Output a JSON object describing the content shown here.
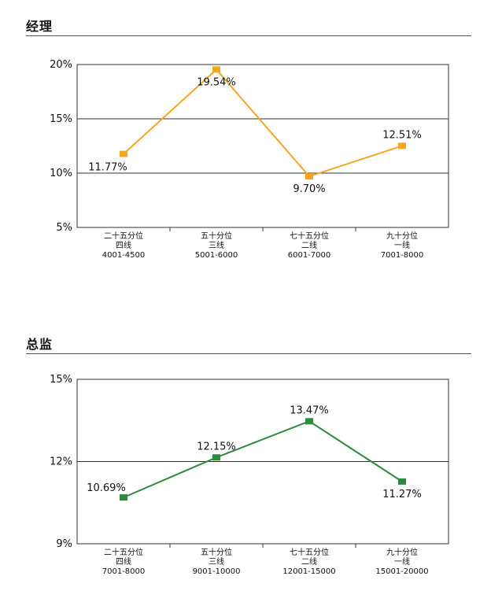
{
  "charts": [
    {
      "title": "经理",
      "chart_data": {
        "type": "line",
        "categories": [
          [
            "二十五分位",
            "四线",
            "4001-4500"
          ],
          [
            "五十分位",
            "三线",
            "5001-6000"
          ],
          [
            "七十五分位",
            "二线",
            "6001-7000"
          ],
          [
            "九十分位",
            "一线",
            "7001-8000"
          ]
        ],
        "values": [
          11.77,
          19.54,
          9.7,
          12.51
        ],
        "value_labels": [
          "11.77%",
          "19.54%",
          "9.70%",
          "12.51%"
        ],
        "yticks": [
          5,
          10,
          15,
          20
        ],
        "ytick_labels": [
          "5%",
          "10%",
          "15%",
          "20%"
        ],
        "ylim": [
          5,
          20
        ],
        "gridlines": [
          10,
          15
        ],
        "color": "#f5a623"
      }
    },
    {
      "title": "总监",
      "chart_data": {
        "type": "line",
        "categories": [
          [
            "二十五分位",
            "四线",
            "7001-8000"
          ],
          [
            "五十分位",
            "三线",
            "9001-10000"
          ],
          [
            "七十五分位",
            "二线",
            "12001-15000"
          ],
          [
            "九十分位",
            "一线",
            "15001-20000"
          ]
        ],
        "values": [
          10.69,
          12.15,
          13.47,
          11.27
        ],
        "value_labels": [
          "10.69%",
          "12.15%",
          "13.47%",
          "11.27%"
        ],
        "yticks": [
          9,
          12,
          15
        ],
        "ytick_labels": [
          "9%",
          "12%",
          "15%"
        ],
        "ylim": [
          9,
          15
        ],
        "gridlines": [
          12
        ],
        "color": "#2e8b3e"
      }
    }
  ]
}
